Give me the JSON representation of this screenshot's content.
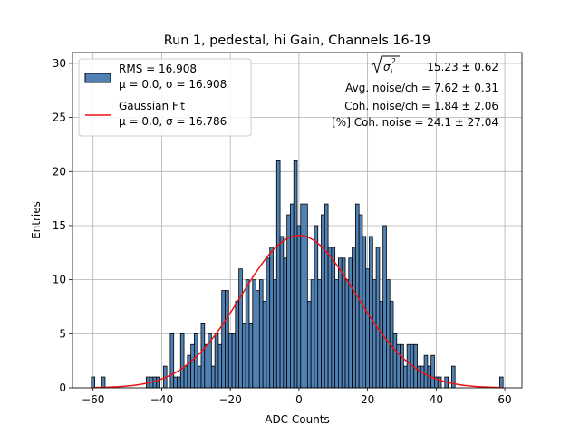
{
  "chart_data": {
    "type": "bar",
    "title": "Run 1, pedestal, hi Gain, Channels 16-19",
    "xlabel": "ADC Counts",
    "ylabel": "Entries",
    "xlim": [
      -66,
      65
    ],
    "ylim": [
      0,
      31
    ],
    "xticks": [
      -60,
      -40,
      -20,
      0,
      20,
      40,
      60
    ],
    "yticks": [
      0,
      5,
      10,
      15,
      20,
      25,
      30
    ],
    "grid": true,
    "legend_placement": "top-left",
    "bin_width": 1,
    "bar_color": "#4f81b4",
    "fit_color": "#ee1111",
    "series": [
      {
        "name": "RMS = 16.908",
        "sub": "μ = 0.0, σ = 16.908",
        "kind": "histogram",
        "x": [
          -60,
          -57,
          -44,
          -43,
          -42,
          -41,
          -39,
          -37,
          -36,
          -35,
          -34,
          -33,
          -32,
          -31,
          -30,
          -29,
          -28,
          -27,
          -26,
          -25,
          -24,
          -23,
          -22,
          -21,
          -20,
          -19,
          -18,
          -17,
          -16,
          -15,
          -14,
          -13,
          -12,
          -11,
          -10,
          -9,
          -8,
          -7,
          -6,
          -5,
          -4,
          -3,
          -2,
          -1,
          0,
          1,
          2,
          3,
          4,
          5,
          6,
          7,
          8,
          9,
          10,
          11,
          12,
          13,
          14,
          15,
          16,
          17,
          18,
          19,
          20,
          21,
          22,
          23,
          24,
          25,
          26,
          27,
          28,
          29,
          30,
          31,
          32,
          33,
          34,
          35,
          36,
          37,
          38,
          39,
          40,
          41,
          43,
          45,
          59
        ],
        "values": [
          1,
          1,
          1,
          1,
          1,
          1,
          2,
          5,
          1,
          1,
          5,
          2,
          3,
          4,
          5,
          2,
          6,
          4,
          5,
          2,
          5,
          4,
          9,
          9,
          5,
          5,
          8,
          11,
          6,
          10,
          6,
          10,
          9,
          10,
          8,
          12,
          13,
          10,
          21,
          14,
          12,
          16,
          17,
          21,
          15,
          17,
          17,
          8,
          10,
          15,
          10,
          16,
          17,
          13,
          13,
          10,
          12,
          12,
          10,
          12,
          13,
          17,
          16,
          14,
          11,
          14,
          10,
          13,
          8,
          15,
          10,
          8,
          5,
          4,
          4,
          2,
          4,
          4,
          4,
          2,
          2,
          3,
          2,
          3,
          1,
          1,
          1,
          2,
          1
        ]
      },
      {
        "name": "Gaussian Fit",
        "sub": "μ = 0.0, σ = 16.786",
        "kind": "line",
        "mu": 0.0,
        "sigma": 16.786,
        "amplitude": 14.1,
        "x_range": [
          -60,
          59
        ]
      }
    ],
    "annotations": [
      "15.23 ± 0.62",
      "Avg. noise/ch = 7.62 ± 0.31",
      "Coh. noise/ch = 1.84 ± 2.06",
      "[%] Coh. noise = 24.1 ± 27.04"
    ]
  }
}
